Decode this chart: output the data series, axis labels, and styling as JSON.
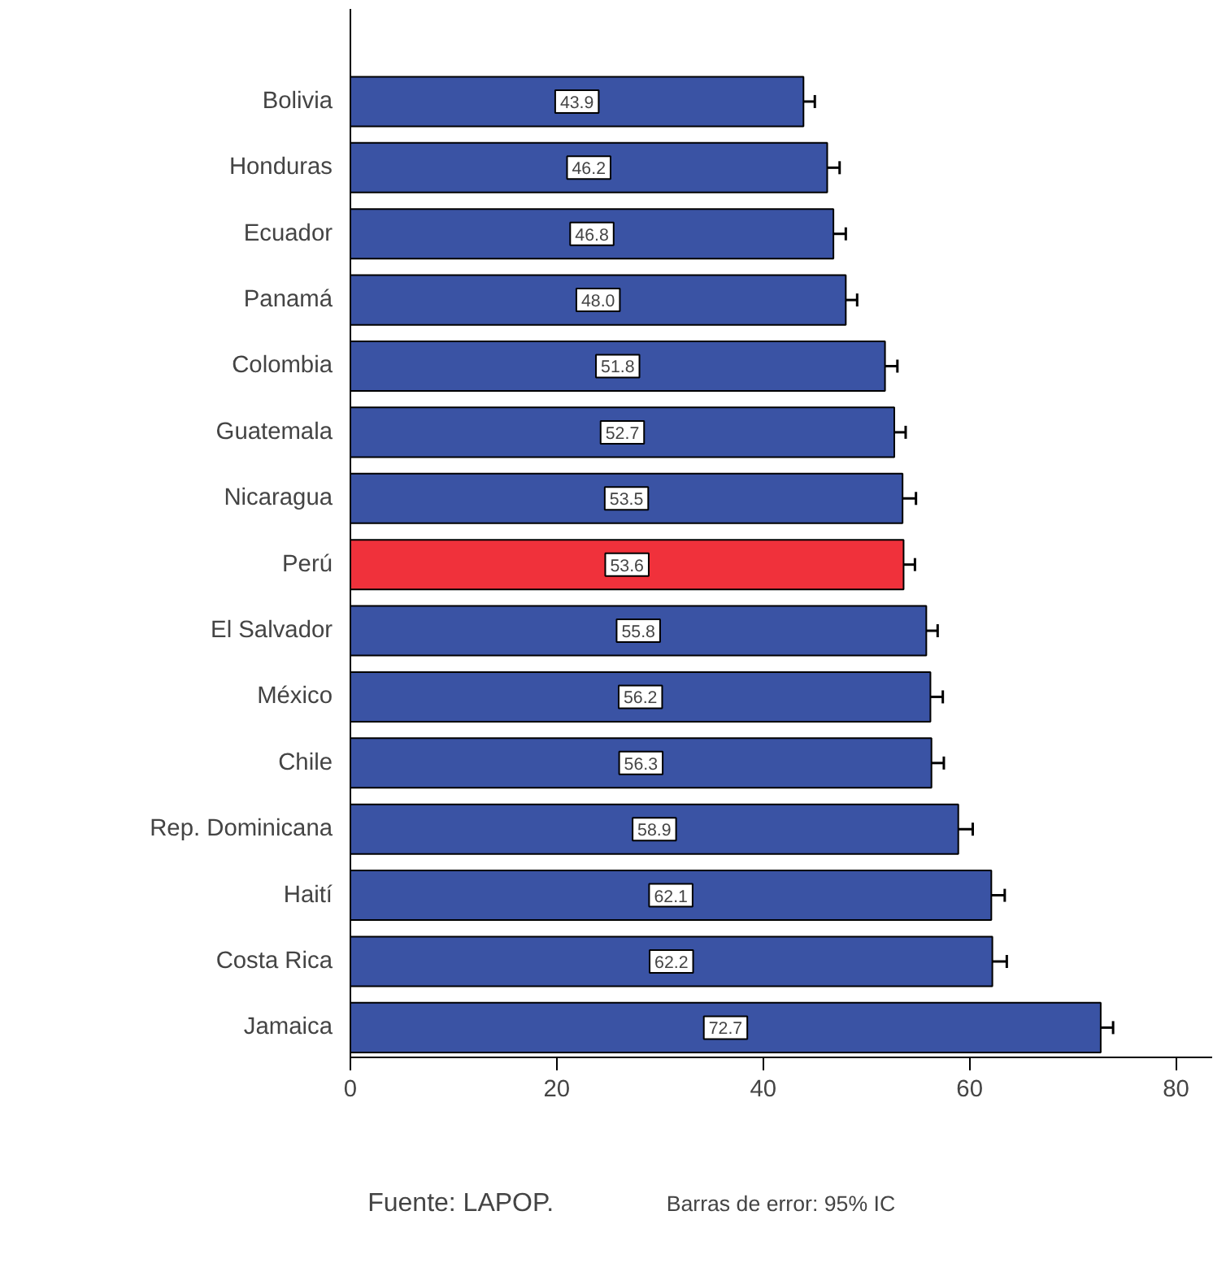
{
  "chart_data": {
    "type": "bar",
    "orientation": "horizontal",
    "categories": [
      "Bolivia",
      "Honduras",
      "Ecuador",
      "Panamá",
      "Colombia",
      "Guatemala",
      "Nicaragua",
      "Perú",
      "El Salvador",
      "México",
      "Chile",
      "Rep. Dominicana",
      "Haití",
      "Costa Rica",
      "Jamaica"
    ],
    "values": [
      43.9,
      46.2,
      46.8,
      48.0,
      51.8,
      52.7,
      53.5,
      53.6,
      55.8,
      56.2,
      56.3,
      58.9,
      62.1,
      62.2,
      72.7
    ],
    "colors": [
      "#3a53a4",
      "#3a53a4",
      "#3a53a4",
      "#3a53a4",
      "#3a53a4",
      "#3a53a4",
      "#3a53a4",
      "#f0313b",
      "#3a53a4",
      "#3a53a4",
      "#3a53a4",
      "#3a53a4",
      "#3a53a4",
      "#3a53a4",
      "#3a53a4"
    ],
    "errors": [
      1.1,
      1.2,
      1.2,
      1.1,
      1.2,
      1.1,
      1.3,
      1.1,
      1.1,
      1.2,
      1.2,
      1.4,
      1.3,
      1.4,
      1.2
    ],
    "value_labels": [
      "43.9",
      "46.2",
      "46.8",
      "48.0",
      "51.8",
      "52.7",
      "53.5",
      "53.6",
      "55.8",
      "56.2",
      "56.3",
      "58.9",
      "62.1",
      "62.2",
      "72.7"
    ],
    "xlim": [
      0,
      83.5
    ],
    "xticks": [
      0,
      20,
      40,
      60,
      80
    ],
    "grid": false,
    "annotations": [
      "Fuente: LAPOP.",
      "Barras de error: 95% IC"
    ]
  }
}
